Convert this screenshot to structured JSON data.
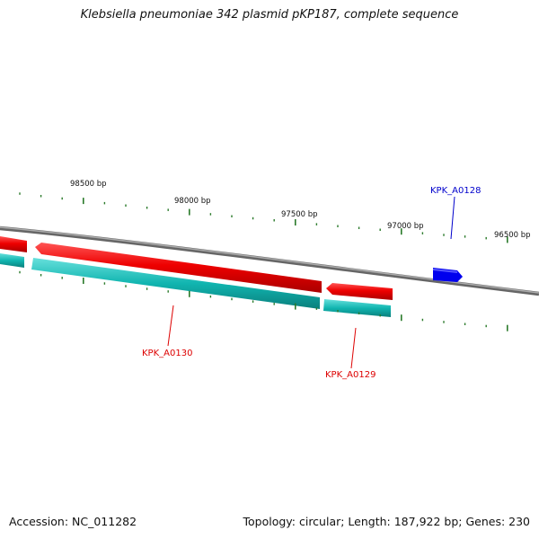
{
  "title": "Klebsiella pneumoniae 342 plasmid pKP187, complete sequence",
  "footer": {
    "accession": "Accession: NC_011282",
    "topology": "Topology: circular; Length: 187,922 bp; Genes: 230"
  },
  "scale": {
    "labels": [
      "98500 bp",
      "98000 bp",
      "97500 bp",
      "97000 bp",
      "96500 bp"
    ]
  },
  "genes": [
    {
      "name": "KPK_A0128",
      "color": "#0000cc"
    },
    {
      "name": "KPK_A0130",
      "color": "#dd0000"
    },
    {
      "name": "KPK_A0129",
      "color": "#dd0000"
    }
  ],
  "colors": {
    "backbone": "#888888",
    "reverse_gene": "#ee0000",
    "forward_gene": "#0000ee",
    "cds_track": "#11b5b0",
    "ticks": "#2a7a2a"
  }
}
